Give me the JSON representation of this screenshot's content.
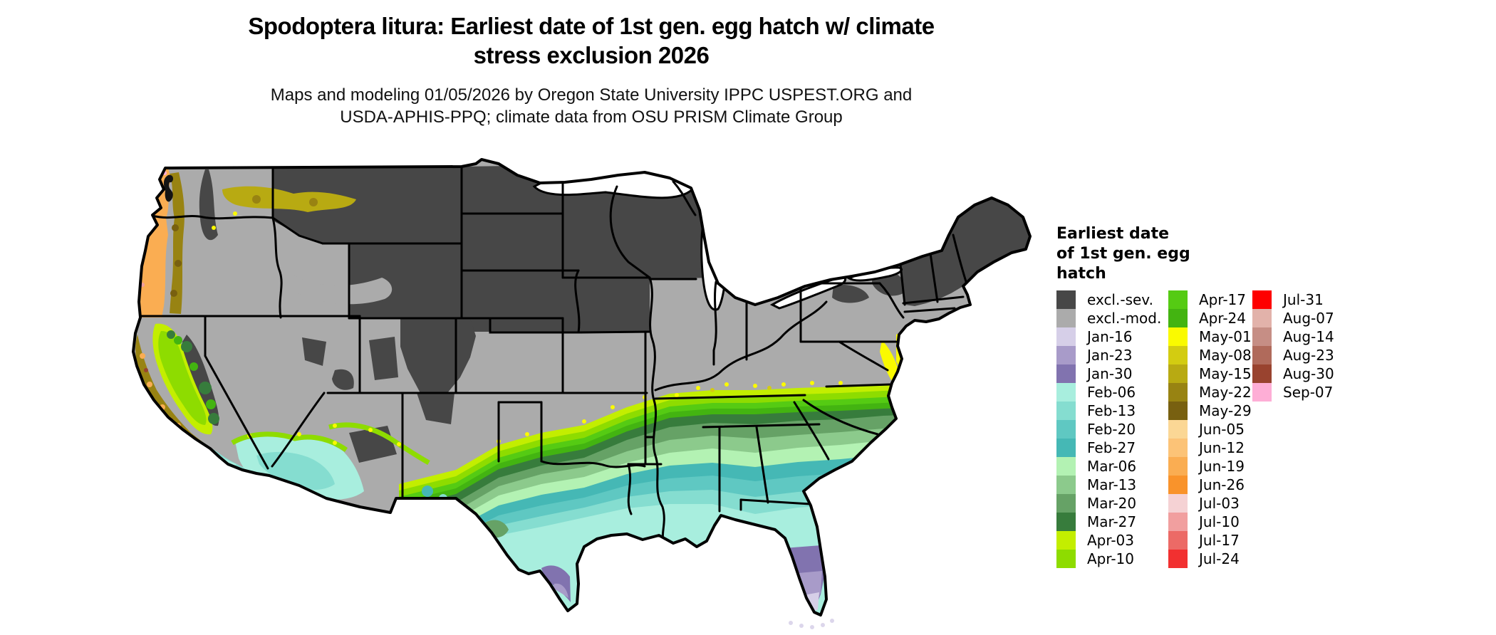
{
  "title": {
    "line1": "Spodoptera litura: Earliest date of 1st gen. egg hatch w/ climate",
    "line2": "stress exclusion 2026"
  },
  "subtitle": {
    "line1": "Maps and modeling 01/05/2026 by Oregon State University IPPC USPEST.ORG and",
    "line2": "USDA-APHIS-PPQ; climate data from OSU PRISM Climate Group"
  },
  "legend": {
    "title_lines": [
      "Earliest date",
      "of 1st gen. egg",
      "hatch"
    ],
    "columns": [
      {
        "entries": [
          {
            "label": "excl.-sev.",
            "color": "#474747"
          },
          {
            "label": "excl.-mod.",
            "color": "#ababab"
          },
          {
            "label": "Jan-16",
            "color": "#d6cfe8"
          },
          {
            "label": "Jan-23",
            "color": "#a89bc9"
          },
          {
            "label": "Jan-30",
            "color": "#8173af"
          },
          {
            "label": "Feb-06",
            "color": "#a8eede"
          },
          {
            "label": "Feb-13",
            "color": "#85ddd0"
          },
          {
            "label": "Feb-20",
            "color": "#5fc8c2"
          },
          {
            "label": "Feb-27",
            "color": "#45b8b5"
          },
          {
            "label": "Mar-06",
            "color": "#b3f2b3"
          },
          {
            "label": "Mar-13",
            "color": "#8cca8c"
          },
          {
            "label": "Mar-20",
            "color": "#66a266"
          },
          {
            "label": "Mar-27",
            "color": "#377c3c"
          },
          {
            "label": "Apr-03",
            "color": "#c3ee00"
          },
          {
            "label": "Apr-10",
            "color": "#8edc00"
          }
        ]
      },
      {
        "entries": [
          {
            "label": "Apr-17",
            "color": "#55cb13"
          },
          {
            "label": "Apr-24",
            "color": "#43b411"
          },
          {
            "label": "May-01",
            "color": "#fafa00"
          },
          {
            "label": "May-08",
            "color": "#d3cc11"
          },
          {
            "label": "May-15",
            "color": "#b8aa12"
          },
          {
            "label": "May-22",
            "color": "#988312"
          },
          {
            "label": "May-29",
            "color": "#786010"
          },
          {
            "label": "Jun-05",
            "color": "#fbd795"
          },
          {
            "label": "Jun-12",
            "color": "#fcc377"
          },
          {
            "label": "Jun-19",
            "color": "#faad52"
          },
          {
            "label": "Jun-26",
            "color": "#f9932b"
          },
          {
            "label": "Jul-03",
            "color": "#f5d2d4"
          },
          {
            "label": "Jul-10",
            "color": "#f19f9f"
          },
          {
            "label": "Jul-17",
            "color": "#ec6a66"
          },
          {
            "label": "Jul-24",
            "color": "#f23030"
          }
        ]
      },
      {
        "entries": [
          {
            "label": "Jul-31",
            "color": "#fe0000"
          },
          {
            "label": "Aug-07",
            "color": "#e2b2aa"
          },
          {
            "label": "Aug-14",
            "color": "#c68e85"
          },
          {
            "label": "Aug-23",
            "color": "#b06a5b"
          },
          {
            "label": "Aug-30",
            "color": "#99432f"
          },
          {
            "label": "Sep-07",
            "color": "#feaed6"
          }
        ]
      }
    ]
  },
  "map": {
    "water_color": "#ffffff",
    "boundary_color": "#000000"
  }
}
